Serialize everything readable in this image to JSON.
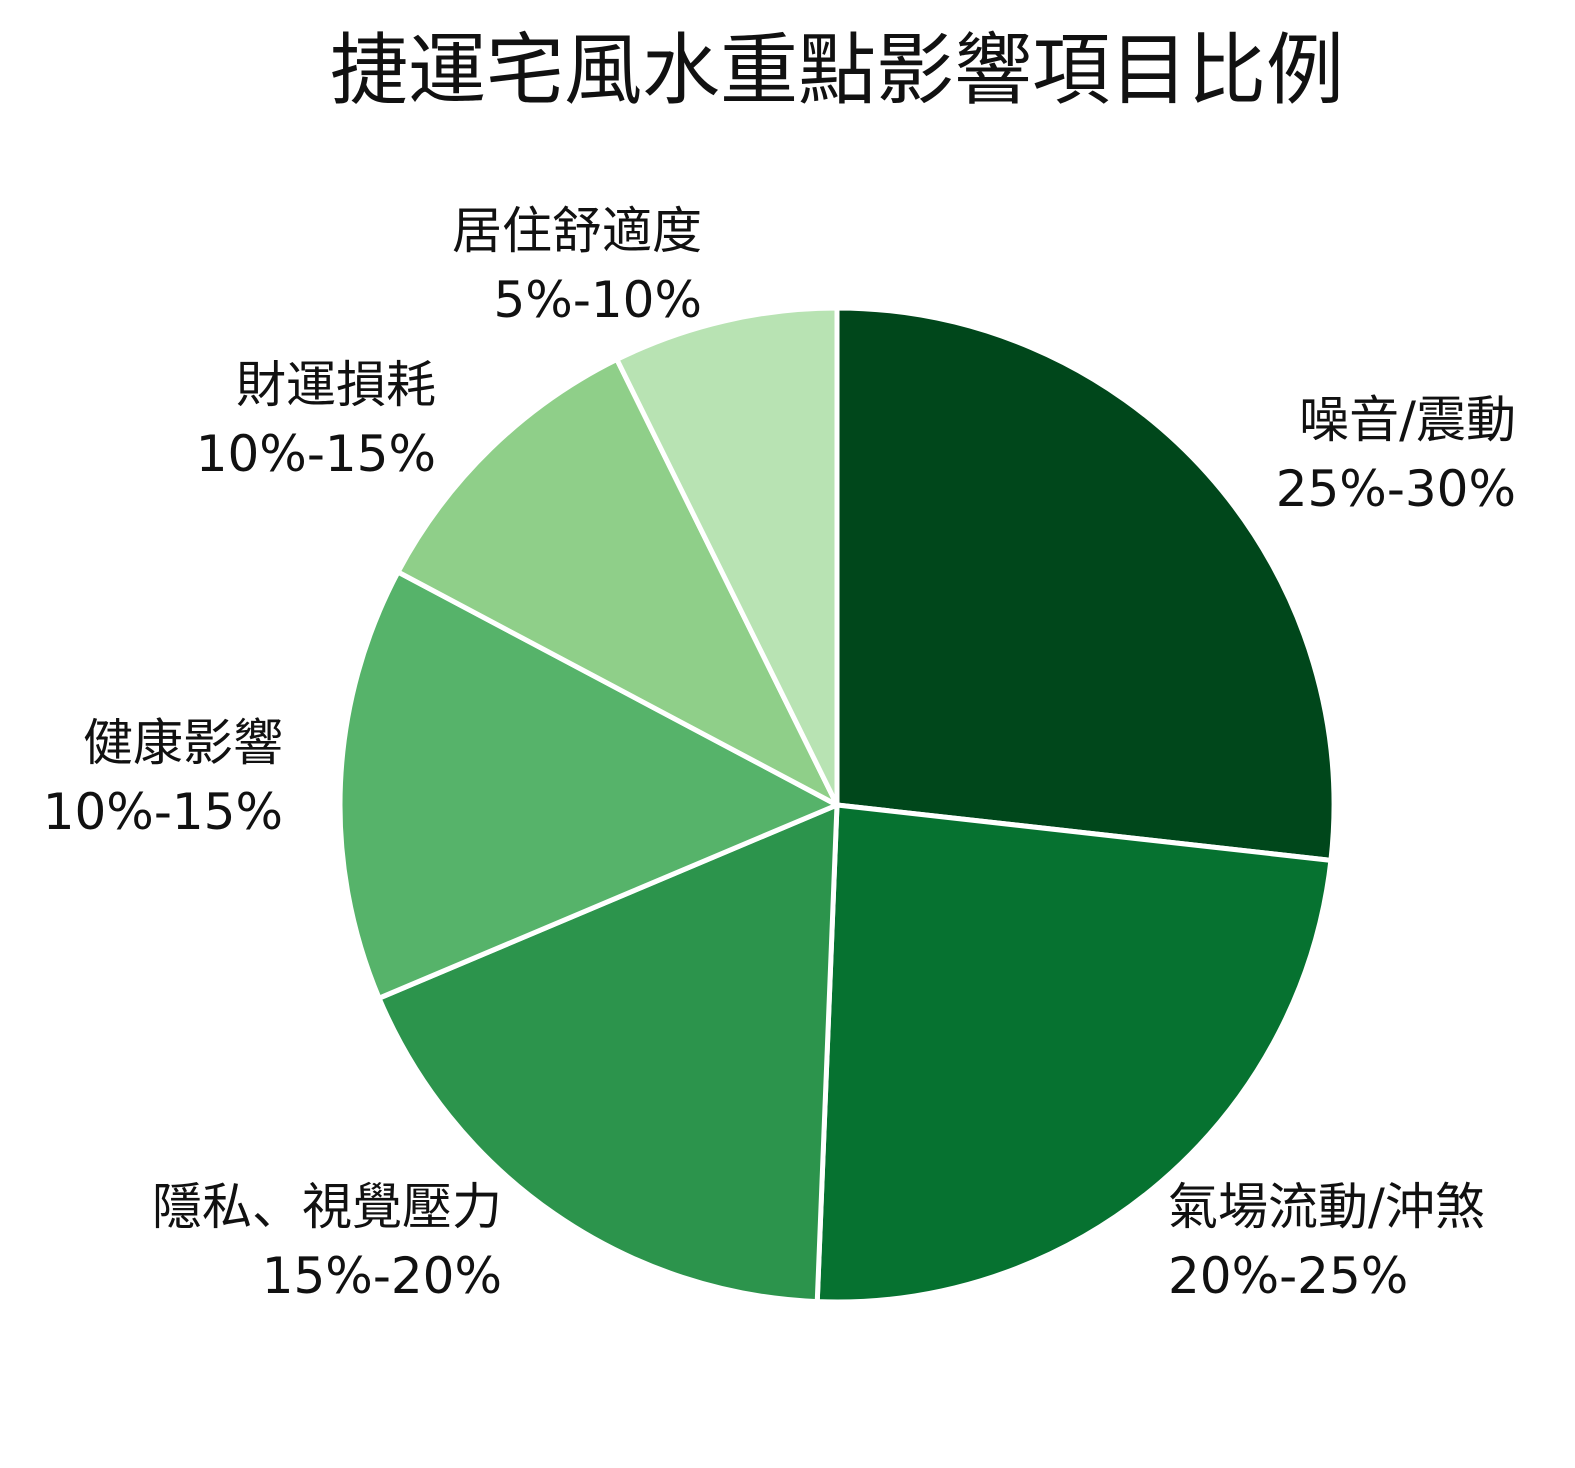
{
  "chart_data": {
    "type": "pie",
    "title": "捷運宅風水重點影響項目比例",
    "slices": [
      {
        "name": "噪音/震動",
        "range_label": "25%-30%",
        "value": 27.5,
        "color": "#00471b"
      },
      {
        "name": "氣場流動/沖煞",
        "range_label": "20%-25%",
        "value": 24.5,
        "color": "#067230"
      },
      {
        "name": "隱私、視覺壓力",
        "range_label": "15%-20%",
        "value": 18.5,
        "color": "#2c944c"
      },
      {
        "name": "健康影響",
        "range_label": "10%-15%",
        "value": 14.5,
        "color": "#56b36a"
      },
      {
        "name": "財運損耗",
        "range_label": "10%-15%",
        "value": 10.2,
        "color": "#8fcf89"
      },
      {
        "name": "居住舒適度",
        "range_label": "5%-10%",
        "value": 7.5,
        "color": "#b8e3b3"
      }
    ],
    "start_angle_deg": 0,
    "direction": "clockwise",
    "legend": "none"
  }
}
